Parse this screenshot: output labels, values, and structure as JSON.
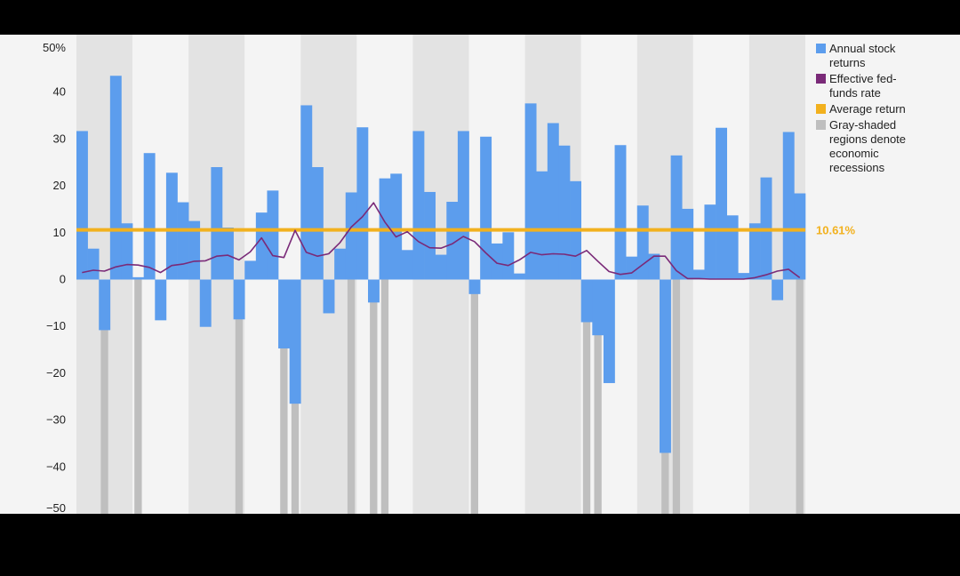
{
  "chart_data": {
    "type": "bar",
    "title": "",
    "xlabel": "",
    "ylabel": "",
    "ylim": [
      -50,
      50
    ],
    "y_ticks": [
      "50%",
      "40",
      "30",
      "20",
      "10",
      "0",
      "−10",
      "−20",
      "−30",
      "−40",
      "−50"
    ],
    "n_years": 65,
    "average_return": 10.61,
    "average_label": "10.61%",
    "series": [
      {
        "name": "Annual stock returns",
        "values": [
          31.7,
          6.6,
          -10.8,
          43.5,
          12.0,
          0.5,
          27.0,
          -8.7,
          22.8,
          16.5,
          12.5,
          -10.1,
          24.0,
          11.1,
          -8.5,
          4.0,
          14.3,
          19.0,
          -14.7,
          -26.5,
          37.2,
          24.0,
          -7.2,
          6.6,
          18.6,
          32.5,
          -4.9,
          21.6,
          22.6,
          6.3,
          31.7,
          18.7,
          5.3,
          16.6,
          31.7,
          -3.1,
          30.5,
          7.7,
          10.1,
          1.3,
          37.6,
          23.1,
          33.4,
          28.6,
          21.0,
          -9.1,
          -11.9,
          -22.1,
          28.7,
          4.9,
          15.8,
          5.5,
          -37.0,
          26.5,
          15.1,
          2.1,
          16.0,
          32.4,
          13.7,
          1.4,
          12.0,
          21.8,
          -4.4,
          31.5,
          18.4
        ]
      },
      {
        "name": "Effective fed-funds rate",
        "values": [
          1.5,
          2.0,
          1.8,
          2.7,
          3.2,
          3.1,
          2.6,
          1.5,
          3.0,
          3.3,
          3.9,
          4.0,
          5.0,
          5.2,
          4.2,
          5.9,
          8.9,
          5.1,
          4.7,
          10.5,
          5.8,
          5.0,
          5.5,
          7.9,
          11.2,
          13.4,
          16.4,
          12.3,
          9.1,
          10.2,
          8.1,
          6.8,
          6.7,
          7.6,
          9.2,
          8.1,
          5.7,
          3.5,
          3.0,
          4.2,
          5.8,
          5.3,
          5.5,
          5.4,
          5.0,
          6.2,
          3.9,
          1.7,
          1.1,
          1.4,
          3.2,
          5.0,
          5.0,
          1.9,
          0.2,
          0.2,
          0.1,
          0.1,
          0.1,
          0.1,
          0.4,
          1.0,
          1.8,
          2.2,
          0.4
        ]
      }
    ],
    "recession_years": [
      2,
      5,
      14,
      18,
      19,
      24,
      26,
      27,
      35,
      45,
      46,
      52,
      53,
      64
    ]
  },
  "legend": {
    "items": [
      {
        "label": "Annual stock returns",
        "color": "#5c9ded"
      },
      {
        "label": "Effective fed-funds rate",
        "color": "#7a2a78"
      },
      {
        "label": "Average return",
        "color": "#f2b11e"
      },
      {
        "label": "Gray-shaded regions denote economic recessions",
        "color": "#bfbfbf"
      }
    ]
  },
  "colors": {
    "bar": "#5c9ded",
    "line": "#7a2a78",
    "average": "#f2b11e",
    "recession": "#bfbfbf",
    "band_dark": "#e3e3e3",
    "band_light": "#f4f4f4"
  }
}
